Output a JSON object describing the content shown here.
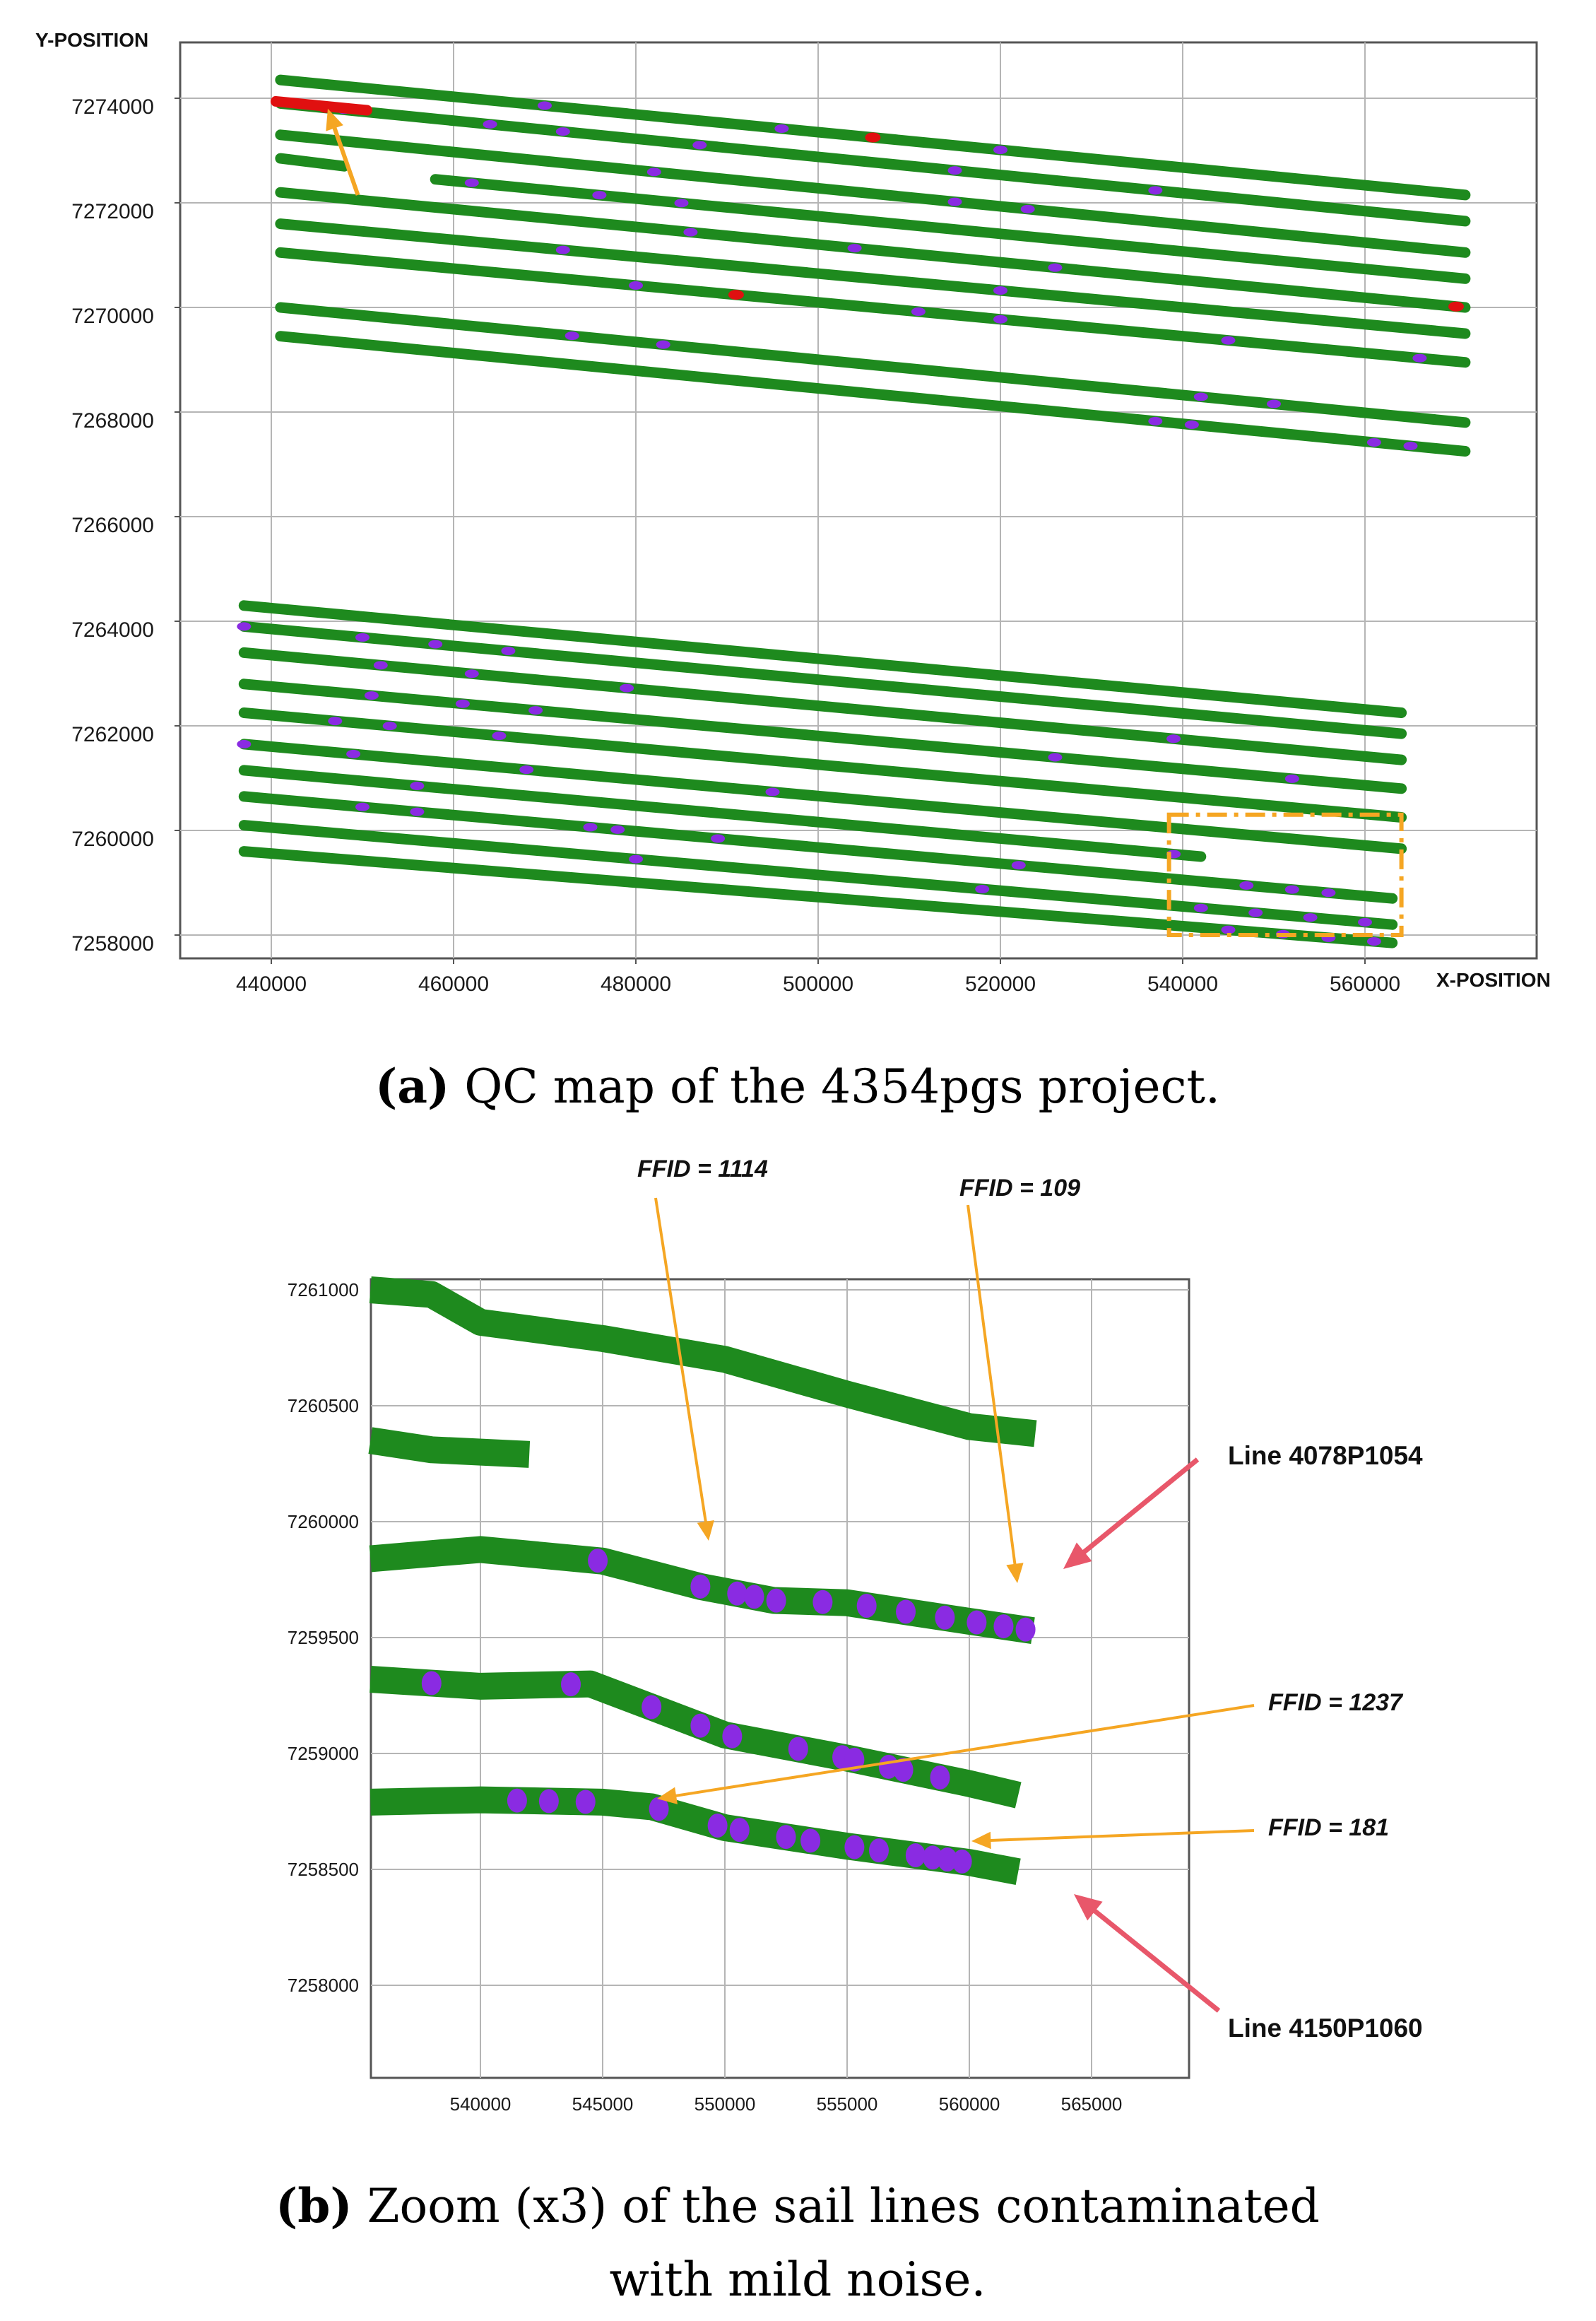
{
  "colors": {
    "track": "#1e8a1e",
    "noise_mild": "#8a2be2",
    "noise_strong": "#e01010",
    "arrow_orange": "#f5a623",
    "arrow_red": "#e8576a",
    "grid": "#b5b5b5"
  },
  "chart_data": [
    {
      "type": "scatter",
      "panel": "a",
      "xlabel": "X-POSITION",
      "ylabel": "Y-POSITION",
      "xlim": [
        430000,
        580000
      ],
      "ylim": [
        7257800,
        7275000
      ],
      "xticks": [
        "440000",
        "460000",
        "480000",
        "500000",
        "520000",
        "540000",
        "560000"
      ],
      "yticks": [
        "7274000",
        "7272000",
        "7270000",
        "7268000",
        "7266000",
        "7264000",
        "7262000",
        "7260000",
        "7258000"
      ],
      "grid": true,
      "series_colors": {
        "clean": "green",
        "mild_noise": "purple",
        "strong_noise": "red"
      },
      "lines": [
        {
          "start": [
            441000,
            7274350
          ],
          "end": [
            571000,
            7272150
          ],
          "mild_noise_x": [
            470000,
            496000,
            520000
          ],
          "strong_noise_x": [
            506000
          ]
        },
        {
          "start": [
            441000,
            7273900
          ],
          "end": [
            571000,
            7271650
          ],
          "mild_noise_x": [
            448000,
            464000,
            472000,
            487000,
            515000,
            537000
          ],
          "strong_noise_x": [
            446000
          ]
        },
        {
          "start": [
            441000,
            7273300
          ],
          "end": [
            571000,
            7271050
          ],
          "mild_noise_x": [
            482000,
            515000,
            523000
          ],
          "strong_noise_x": []
        },
        {
          "start": [
            441000,
            7272850
          ],
          "end": [
            448000,
            7272700
          ],
          "mild_noise_x": [],
          "strong_noise_x": []
        },
        {
          "start": [
            458000,
            7272450
          ],
          "end": [
            571000,
            7270550
          ],
          "mild_noise_x": [
            462000,
            476000,
            485000
          ],
          "strong_noise_x": []
        },
        {
          "start": [
            441000,
            7272200
          ],
          "end": [
            571000,
            7270000
          ],
          "mild_noise_x": [
            486000,
            504000,
            526000
          ],
          "strong_noise_x": [
            570000
          ]
        },
        {
          "start": [
            441000,
            7271600
          ],
          "end": [
            571000,
            7269500
          ],
          "mild_noise_x": [
            472000,
            520000
          ],
          "strong_noise_x": []
        },
        {
          "start": [
            441000,
            7271050
          ],
          "end": [
            571000,
            7268950
          ],
          "mild_noise_x": [
            480000,
            511000,
            520000,
            545000,
            566000
          ],
          "strong_noise_x": [
            491000
          ]
        },
        {
          "start": [
            441000,
            7270000
          ],
          "end": [
            571000,
            7267800
          ],
          "mild_noise_x": [
            473000,
            483000,
            542000,
            550000
          ],
          "strong_noise_x": []
        },
        {
          "start": [
            441000,
            7269450
          ],
          "end": [
            571000,
            7267250
          ],
          "mild_noise_x": [
            537000,
            541000,
            561000,
            565000
          ],
          "strong_noise_x": []
        },
        {
          "start": [
            437000,
            7264300
          ],
          "end": [
            564000,
            7262250
          ],
          "mild_noise_x": [],
          "strong_noise_x": []
        },
        {
          "start": [
            437000,
            7263900
          ],
          "end": [
            564000,
            7261850
          ],
          "mild_noise_x": [
            437000,
            450000,
            458000,
            466000
          ],
          "strong_noise_x": []
        },
        {
          "start": [
            437000,
            7263400
          ],
          "end": [
            564000,
            7261350
          ],
          "mild_noise_x": [
            452000,
            462000,
            479000,
            539000
          ],
          "strong_noise_x": []
        },
        {
          "start": [
            437000,
            7262800
          ],
          "end": [
            564000,
            7260800
          ],
          "mild_noise_x": [
            451000,
            461000,
            469000,
            526000,
            552000
          ],
          "strong_noise_x": []
        },
        {
          "start": [
            437000,
            7262250
          ],
          "end": [
            564000,
            7260250
          ],
          "mild_noise_x": [
            447000,
            453000,
            465000
          ],
          "strong_noise_x": []
        },
        {
          "start": [
            437000,
            7261650
          ],
          "end": [
            564000,
            7259650
          ],
          "mild_noise_x": [
            437000,
            449000,
            468000,
            495000
          ],
          "strong_noise_x": []
        },
        {
          "start": [
            437000,
            7261150
          ],
          "end": [
            542000,
            7259500
          ],
          "mild_noise_x": [
            456000,
            539000
          ],
          "strong_noise_x": []
        },
        {
          "start": [
            437000,
            7260650
          ],
          "end": [
            563000,
            7258700
          ],
          "mild_noise_x": [
            450000,
            456000,
            475000,
            478000,
            489000,
            522000,
            547000,
            552000,
            556000
          ],
          "strong_noise_x": []
        },
        {
          "start": [
            437000,
            7260100
          ],
          "end": [
            563000,
            7258200
          ],
          "mild_noise_x": [
            480000,
            518000,
            542000,
            548000,
            554000,
            560000
          ],
          "strong_noise_x": []
        },
        {
          "start": [
            437000,
            7259600
          ],
          "end": [
            563000,
            7257850
          ],
          "mild_noise_x": [
            545000,
            551000,
            556000,
            561000
          ],
          "strong_noise_x": []
        }
      ],
      "annotations": [
        {
          "kind": "arrow",
          "target": [
            446000,
            7273800
          ]
        },
        {
          "kind": "dashed-box",
          "x_range": [
            538500,
            564000
          ],
          "y_range": [
            7258000,
            7260300
          ]
        }
      ]
    },
    {
      "type": "scatter",
      "panel": "b",
      "xlim": [
        535500,
        567500
      ],
      "ylim": [
        7257600,
        7261000
      ],
      "xticks": [
        "540000",
        "545000",
        "550000",
        "555000",
        "560000",
        "565000"
      ],
      "yticks": [
        "7261000",
        "7260500",
        "7260000",
        "7259500",
        "7259000",
        "7258500",
        "7258000"
      ],
      "grid": true,
      "lines": [
        {
          "points": [
            [
              535500,
              7261000
            ],
            [
              538000,
              7260980
            ],
            [
              540000,
              7260860
            ],
            [
              545000,
              7260790
            ],
            [
              550000,
              7260700
            ],
            [
              555000,
              7260550
            ],
            [
              560000,
              7260410
            ],
            [
              562700,
              7260380
            ]
          ],
          "mild_noise_x": []
        },
        {
          "points": [
            [
              535500,
              7260350
            ],
            [
              538000,
              7260310
            ],
            [
              542000,
              7260290
            ]
          ],
          "mild_noise_x": []
        },
        {
          "points": [
            [
              535500,
              7259840
            ],
            [
              540000,
              7259880
            ],
            [
              545000,
              7259830
            ],
            [
              549000,
              7259720
            ],
            [
              552000,
              7259660
            ],
            [
              555000,
              7259650
            ],
            [
              560000,
              7259570
            ],
            [
              562600,
              7259530
            ]
          ],
          "mild_noise_x": [
            544800,
            549000,
            550500,
            551200,
            552100,
            554000,
            555800,
            557400,
            559000,
            560300,
            561400,
            562300
          ]
        },
        {
          "points": [
            [
              535500,
              7259320
            ],
            [
              540000,
              7259290
            ],
            [
              544500,
              7259300
            ],
            [
              547000,
              7259200
            ],
            [
              550000,
              7259080
            ],
            [
              555000,
              7258980
            ],
            [
              560000,
              7258870
            ],
            [
              562000,
              7258820
            ]
          ],
          "mild_noise_x": [
            538000,
            543700,
            547000,
            549000,
            550300,
            553000,
            554800,
            555300,
            556700,
            557300,
            558800
          ]
        },
        {
          "points": [
            [
              535500,
              7258790
            ],
            [
              540000,
              7258800
            ],
            [
              545000,
              7258790
            ],
            [
              547000,
              7258770
            ],
            [
              550000,
              7258680
            ],
            [
              555000,
              7258600
            ],
            [
              560000,
              7258530
            ],
            [
              562000,
              7258490
            ]
          ],
          "mild_noise_x": [
            541500,
            542800,
            544300,
            547300,
            549700,
            550600,
            552500,
            553500,
            555300,
            556300,
            557800,
            558500,
            559100,
            559700
          ]
        }
      ]
    }
  ],
  "panel_b_labels": {
    "ffid_1114": "FFID = 1114",
    "ffid_109": "FFID = 109",
    "ffid_1237": "FFID = 1237",
    "ffid_181": "FFID = 181",
    "line_top": "Line 4078P1054",
    "line_bottom": "Line 4150P1060"
  },
  "captions": {
    "a_letter": "(a)",
    "a_text": " QC map of the 4354pgs project.",
    "b_letter": "(b)",
    "b_text_1": " Zoom (x3) of the sail lines contaminated",
    "b_text_2": "with mild noise."
  }
}
